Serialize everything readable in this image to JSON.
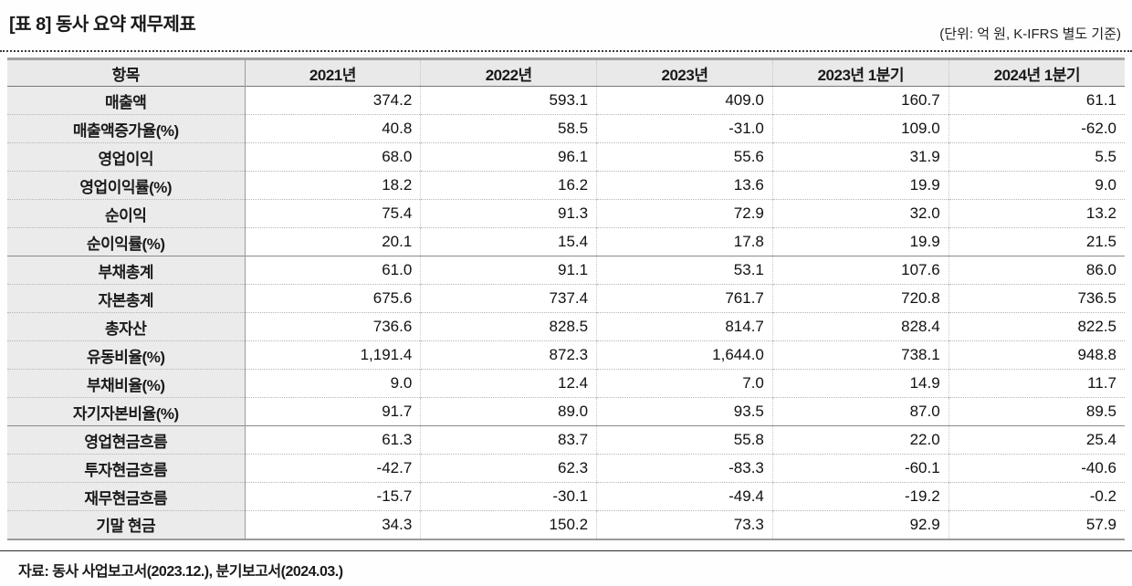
{
  "header": {
    "title": "[표 8] 동사 요약 재무제표",
    "unit_note": "(단위: 억 원, K-IFRS 별도 기준)"
  },
  "table": {
    "columns": [
      "항목",
      "2021년",
      "2022년",
      "2023년",
      "2023년 1분기",
      "2024년 1분기"
    ],
    "rows": [
      {
        "label": "매출액",
        "values": [
          "374.2",
          "593.1",
          "409.0",
          "160.7",
          "61.1"
        ]
      },
      {
        "label": "매출액증가율(%)",
        "values": [
          "40.8",
          "58.5",
          "-31.0",
          "109.0",
          "-62.0"
        ]
      },
      {
        "label": "영업이익",
        "values": [
          "68.0",
          "96.1",
          "55.6",
          "31.9",
          "5.5"
        ]
      },
      {
        "label": "영업이익률(%)",
        "values": [
          "18.2",
          "16.2",
          "13.6",
          "19.9",
          "9.0"
        ]
      },
      {
        "label": "순이익",
        "values": [
          "75.4",
          "91.3",
          "72.9",
          "32.0",
          "13.2"
        ]
      },
      {
        "label": "순이익률(%)",
        "values": [
          "20.1",
          "15.4",
          "17.8",
          "19.9",
          "21.5"
        ],
        "section_end": true
      },
      {
        "label": "부채총계",
        "values": [
          "61.0",
          "91.1",
          "53.1",
          "107.6",
          "86.0"
        ]
      },
      {
        "label": "자본총계",
        "values": [
          "675.6",
          "737.4",
          "761.7",
          "720.8",
          "736.5"
        ]
      },
      {
        "label": "총자산",
        "values": [
          "736.6",
          "828.5",
          "814.7",
          "828.4",
          "822.5"
        ]
      },
      {
        "label": "유동비율(%)",
        "values": [
          "1,191.4",
          "872.3",
          "1,644.0",
          "738.1",
          "948.8"
        ]
      },
      {
        "label": "부채비율(%)",
        "values": [
          "9.0",
          "12.4",
          "7.0",
          "14.9",
          "11.7"
        ]
      },
      {
        "label": "자기자본비율(%)",
        "values": [
          "91.7",
          "89.0",
          "93.5",
          "87.0",
          "89.5"
        ],
        "section_end": true
      },
      {
        "label": "영업현금흐름",
        "values": [
          "61.3",
          "83.7",
          "55.8",
          "22.0",
          "25.4"
        ]
      },
      {
        "label": "투자현금흐름",
        "values": [
          "-42.7",
          "62.3",
          "-83.3",
          "-60.1",
          "-40.6"
        ]
      },
      {
        "label": "재무현금흐름",
        "values": [
          "-15.7",
          "-30.1",
          "-49.4",
          "-19.2",
          "-0.2"
        ]
      },
      {
        "label": "기말 현금",
        "values": [
          "34.3",
          "150.2",
          "73.3",
          "92.9",
          "57.9"
        ]
      }
    ]
  },
  "footer": {
    "source": "자료: 동사 사업보고서(2023.12.), 분기보고서(2024.03.)"
  },
  "colors": {
    "header_bg": "#e9e9e9",
    "label_bg": "#ebebeb",
    "section_border": "#8a8a8a",
    "outer_border": "#a3a3a3",
    "text": "#1a1a1a"
  }
}
